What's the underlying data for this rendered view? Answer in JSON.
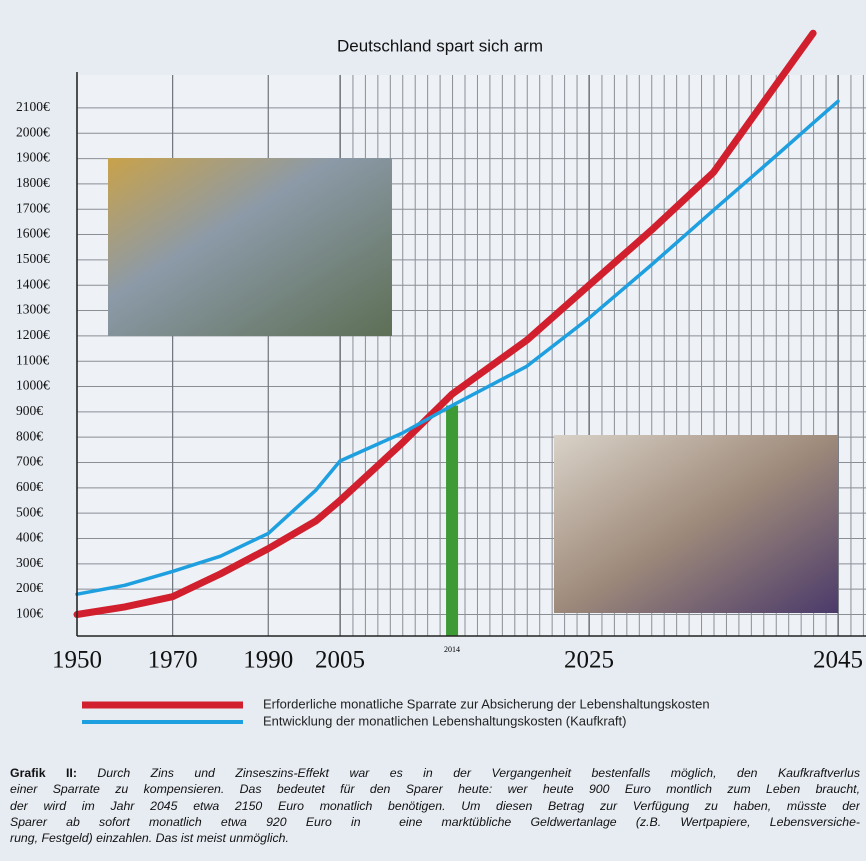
{
  "chart_data": {
    "type": "line",
    "title": "Deutschland spart sich arm",
    "x": [
      1950,
      1960,
      1970,
      1980,
      1990,
      2000,
      2005,
      2010,
      2014,
      2020,
      2025,
      2030,
      2035,
      2040,
      2043,
      2045
    ],
    "series": [
      {
        "name": "Erforderliche monatliche Sparrate zur Absicherung der Lebenshaltungskosten",
        "color": "#d11f2e",
        "values": [
          100,
          130,
          170,
          260,
          360,
          470,
          550,
          777,
          970,
          1183,
          1400,
          1617,
          1846,
          2190,
          2395,
          null
        ]
      },
      {
        "name": "Entwicklung der monatlichen Lebenshaltungskosten (Kaufkraft)",
        "color": "#1e9fdf",
        "values": [
          180,
          215,
          270,
          330,
          420,
          592,
          706,
          816,
          925,
          1080,
          1270,
          1480,
          1696,
          1910,
          2040,
          2126
        ]
      }
    ],
    "marker": {
      "x": 2014,
      "value": 925,
      "color": "#3d9a35"
    },
    "xlim": [
      1950,
      2045
    ],
    "xticks": [
      1950,
      1970,
      1990,
      2005,
      2025,
      2045
    ],
    "ylim": [
      15,
      2230
    ],
    "yticks": [
      {
        "value": 100,
        "label": "100€"
      },
      {
        "value": 200,
        "label": "200€"
      },
      {
        "value": 300,
        "label": "300€"
      },
      {
        "value": 400,
        "label": "400€"
      },
      {
        "value": 500,
        "label": "500€"
      },
      {
        "value": 600,
        "label": "600€"
      },
      {
        "value": 700,
        "label": "700€"
      },
      {
        "value": 800,
        "label": "800€"
      },
      {
        "value": 900,
        "label": "900€"
      },
      {
        "value": 1000,
        "label": "1000€"
      },
      {
        "value": 1100,
        "label": "1100€"
      },
      {
        "value": 1200,
        "label": "1200€"
      },
      {
        "value": 1300,
        "label": "1300€"
      },
      {
        "value": 1400,
        "label": "1400€"
      },
      {
        "value": 1500,
        "label": "1500€"
      },
      {
        "value": 1600,
        "label": "1600€"
      },
      {
        "value": 1700,
        "label": "1700€"
      },
      {
        "value": 1800,
        "label": "1800€"
      },
      {
        "value": 1900,
        "label": "1900€"
      },
      {
        "value": 2000,
        "label": "2000€"
      },
      {
        "value": 2100,
        "label": "2100€"
      }
    ],
    "grid": true
  },
  "caption": {
    "label": "Grafik II:",
    "lines": [
      " Durch Zins und Zinseszins-Effekt war es in der Vergangenheit bestenfalls möglich, den Kaufkraftverlus",
      "einer Sparrate zu kompensieren. Das bedeutet für den Sparer heute: wer heute 900 Euro montlich zum Leben braucht,",
      "der wird im Jahr 2045 etwa 2150 Euro monatlich benötigen. Um diesen Betrag zur Verfügung zu haben, müsste der",
      "Sparer ab sofort monatlich etwa 920 Euro in  eine marktübliche Geldwertanlage (z.B. Wertpapiere, Lebensversiche-",
      "rung, Festgeld) einzahlen. Das ist meist unmöglich."
    ]
  }
}
